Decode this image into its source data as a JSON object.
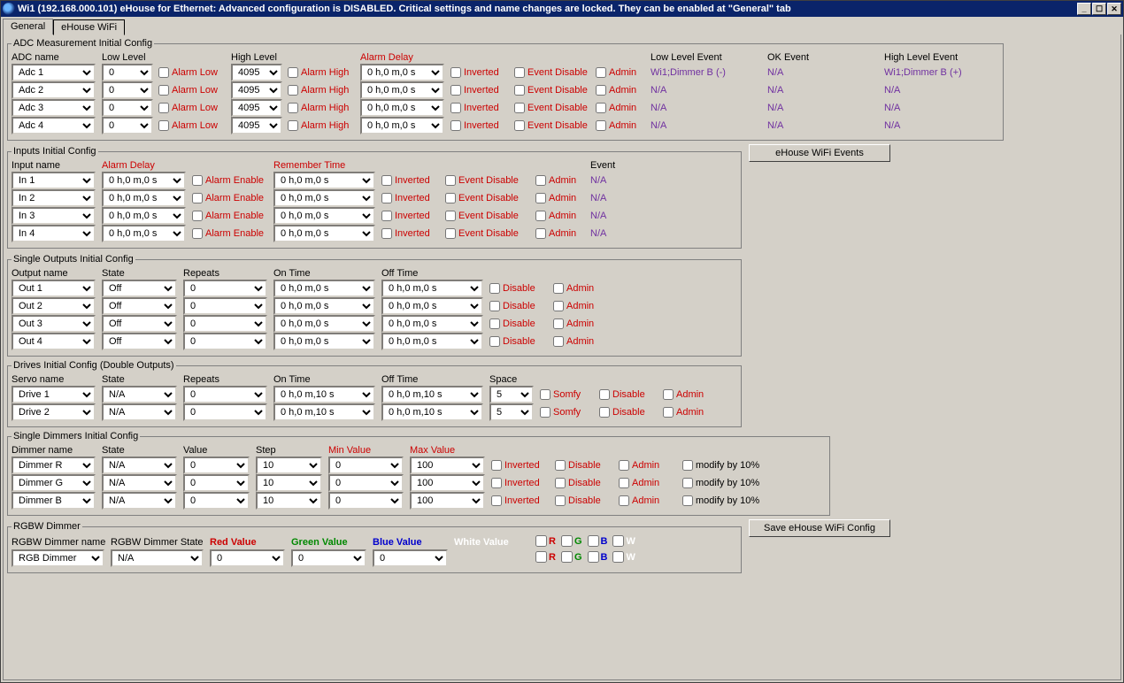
{
  "titlebar": {
    "text": "Wi1 (192.168.000.101)    eHouse for Ethernet: Advanced configuration is DISABLED. Critical settings and name changes are locked. They can be enabled at \"General\" tab"
  },
  "tabs": [
    "General",
    "eHouse WiFi"
  ],
  "colors": {
    "red": "#cc0000",
    "evtext": "#7030a0",
    "green": "#008800",
    "blue": "#0000cc",
    "white": "#ffffff",
    "bg": "#d4d0c8"
  },
  "buttons": {
    "events": "eHouse WiFi Events",
    "save": "Save eHouse WiFi Config"
  },
  "labels": {
    "alarm_low": "Alarm Low",
    "alarm_high": "Alarm High",
    "inverted": "Inverted",
    "event_disable": "Event Disable",
    "admin": "Admin",
    "alarm_enable": "Alarm Enable",
    "disable": "Disable",
    "somfy": "Somfy",
    "modify": "modify by 10%"
  },
  "adc": {
    "legend": "ADC Measurement Initial Config",
    "headers": {
      "name": "ADC name",
      "low": "Low Level",
      "high": "High Level",
      "delay": "Alarm Delay",
      "lowev": "Low Level Event",
      "okev": "OK Event",
      "highev": "High Level Event"
    },
    "rows": [
      {
        "name": "Adc 1",
        "low": "0",
        "high": "4095",
        "delay": "0 h,0 m,0 s",
        "lowev": "Wi1;Dimmer B (-)",
        "okev": "N/A",
        "highev": "Wi1;Dimmer B (+)"
      },
      {
        "name": "Adc 2",
        "low": "0",
        "high": "4095",
        "delay": "0 h,0 m,0 s",
        "lowev": "N/A",
        "okev": "N/A",
        "highev": "N/A"
      },
      {
        "name": "Adc 3",
        "low": "0",
        "high": "4095",
        "delay": "0 h,0 m,0 s",
        "lowev": "N/A",
        "okev": "N/A",
        "highev": "N/A"
      },
      {
        "name": "Adc 4",
        "low": "0",
        "high": "4095",
        "delay": "0 h,0 m,0 s",
        "lowev": "N/A",
        "okev": "N/A",
        "highev": "N/A"
      }
    ]
  },
  "inputs": {
    "legend": "Inputs Initial Config",
    "headers": {
      "name": "Input name",
      "delay": "Alarm Delay",
      "remember": "Remember Time",
      "event": "Event"
    },
    "rows": [
      {
        "name": "In 1",
        "delay": "0 h,0 m,0 s",
        "remember": "0 h,0 m,0 s",
        "event": "N/A"
      },
      {
        "name": "In 2",
        "delay": "0 h,0 m,0 s",
        "remember": "0 h,0 m,0 s",
        "event": "N/A"
      },
      {
        "name": "In 3",
        "delay": "0 h,0 m,0 s",
        "remember": "0 h,0 m,0 s",
        "event": "N/A"
      },
      {
        "name": "In 4",
        "delay": "0 h,0 m,0 s",
        "remember": "0 h,0 m,0 s",
        "event": "N/A"
      }
    ]
  },
  "outputs": {
    "legend": "Single Outputs Initial Config",
    "headers": {
      "name": "Output name",
      "state": "State",
      "repeats": "Repeats",
      "on": "On Time",
      "off": "Off Time"
    },
    "rows": [
      {
        "name": "Out 1",
        "state": "Off",
        "repeats": "0",
        "on": "0 h,0 m,0 s",
        "off": "0 h,0 m,0 s"
      },
      {
        "name": "Out 2",
        "state": "Off",
        "repeats": "0",
        "on": "0 h,0 m,0 s",
        "off": "0 h,0 m,0 s"
      },
      {
        "name": "Out 3",
        "state": "Off",
        "repeats": "0",
        "on": "0 h,0 m,0 s",
        "off": "0 h,0 m,0 s"
      },
      {
        "name": "Out 4",
        "state": "Off",
        "repeats": "0",
        "on": "0 h,0 m,0 s",
        "off": "0 h,0 m,0 s"
      }
    ]
  },
  "drives": {
    "legend": "Drives Initial Config (Double Outputs)",
    "headers": {
      "name": "Servo name",
      "state": "State",
      "repeats": "Repeats",
      "on": "On Time",
      "off": "Off Time",
      "space": "Space"
    },
    "rows": [
      {
        "name": "Drive 1",
        "state": "N/A",
        "repeats": "0",
        "on": "0 h,0 m,10 s",
        "off": "0 h,0 m,10 s",
        "space": "5"
      },
      {
        "name": "Drive 2",
        "state": "N/A",
        "repeats": "0",
        "on": "0 h,0 m,10 s",
        "off": "0 h,0 m,10 s",
        "space": "5"
      }
    ]
  },
  "dimmers": {
    "legend": "Single Dimmers Initial Config",
    "headers": {
      "name": "Dimmer name",
      "state": "State",
      "value": "Value",
      "step": "Step",
      "min": "Min Value",
      "max": "Max Value"
    },
    "rows": [
      {
        "name": "Dimmer R",
        "state": "N/A",
        "value": "0",
        "step": "10",
        "min": "0",
        "max": "100"
      },
      {
        "name": "Dimmer G",
        "state": "N/A",
        "value": "0",
        "step": "10",
        "min": "0",
        "max": "100"
      },
      {
        "name": "Dimmer B",
        "state": "N/A",
        "value": "0",
        "step": "10",
        "min": "0",
        "max": "100"
      }
    ]
  },
  "rgbw": {
    "legend": "RGBW Dimmer",
    "headers": {
      "name": "RGBW Dimmer name",
      "state": "RGBW Dimmer State",
      "red": "Red Value",
      "green": "Green Value",
      "blue": "Blue Value",
      "white": "White Value"
    },
    "row": {
      "name": "RGB Dimmer",
      "state": "N/A",
      "red": "0",
      "green": "0",
      "blue": "0"
    },
    "chks": [
      "R",
      "G",
      "B",
      "W"
    ]
  }
}
